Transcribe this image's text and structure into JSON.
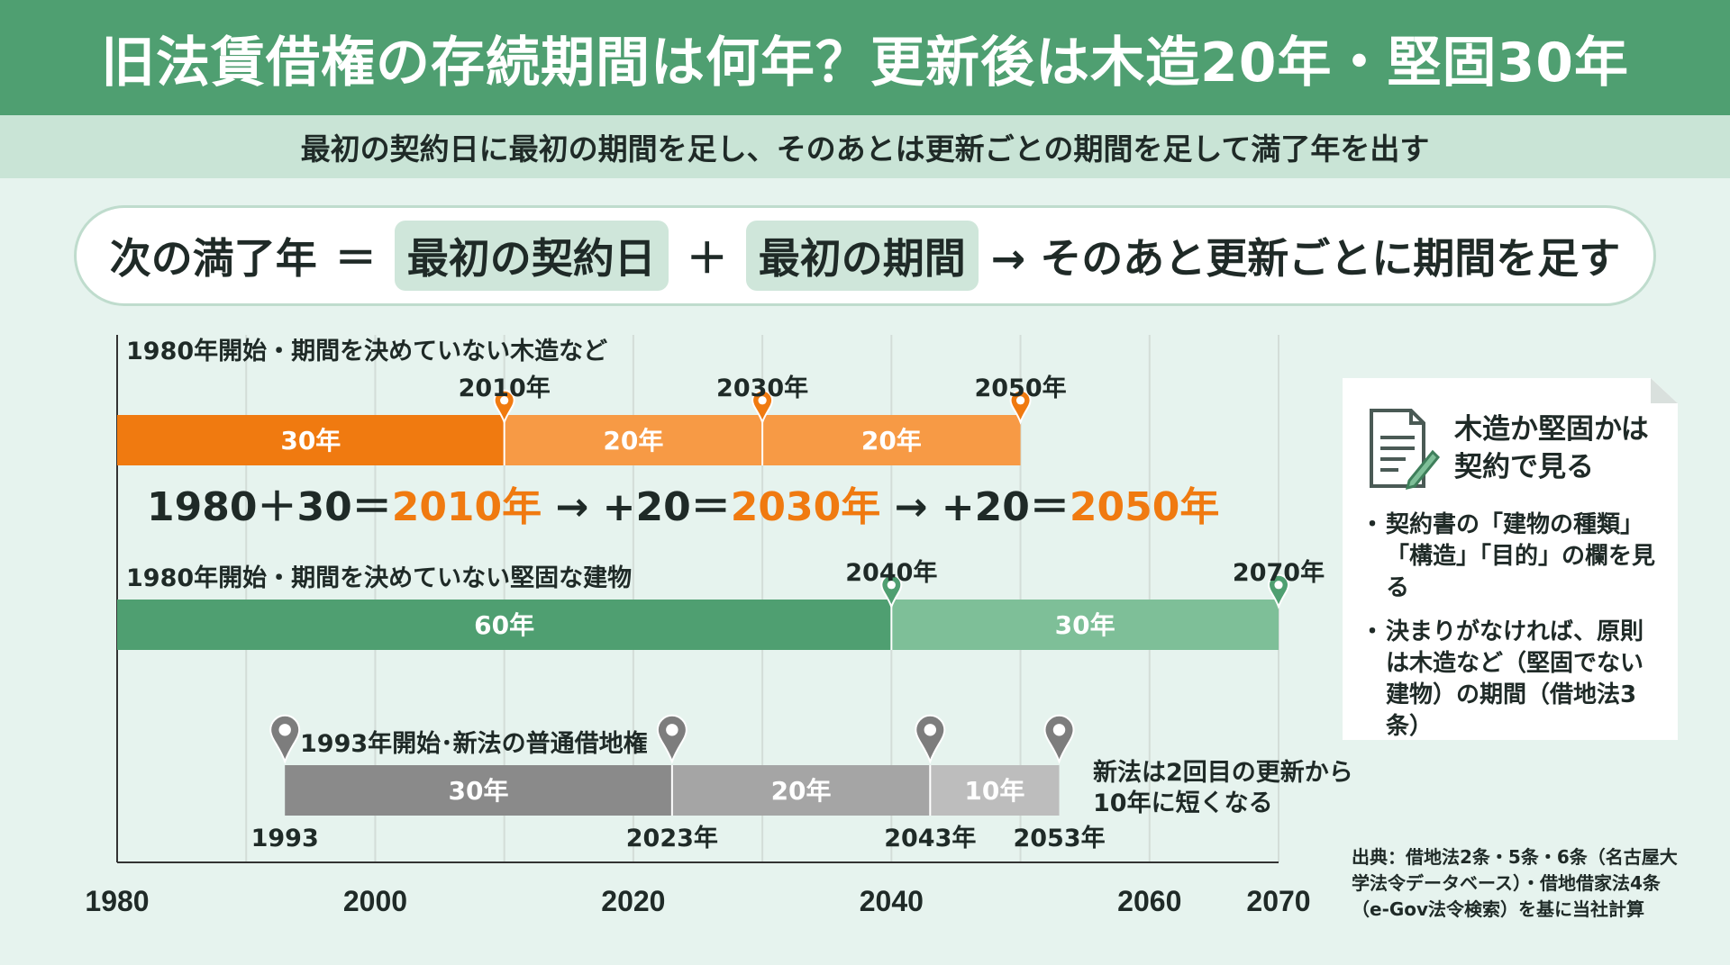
{
  "title": "旧法賃借権の存続期間は何年？更新後は木造20年・堅固30年",
  "subtitle": "最初の契約日に最初の期間を足し、そのあとは更新ごとの期間を足して満了年を出す",
  "formula": {
    "lhs": "次の満了年",
    "eq": "＝",
    "term1": "最初の契約日",
    "plus": "＋",
    "term2": "最初の期間",
    "rest": "→ そのあと更新ごとに期間を足す"
  },
  "axis": {
    "ticks": [
      "1980",
      "2000",
      "2020",
      "2040",
      "2060",
      "2070"
    ]
  },
  "rows": [
    {
      "label": "1980年開始・期間を決めていない木造など",
      "milestones": [
        "2010年",
        "2030年",
        "2050年"
      ],
      "segments": [
        "30年",
        "20年",
        "20年"
      ]
    },
    {
      "label": "1980年開始・期間を決めていない堅固な建物",
      "milestones": [
        "2040年",
        "2070年"
      ],
      "segments": [
        "60年",
        "30年"
      ]
    },
    {
      "label": "1993年開始･新法の普通借地権",
      "milestones": [
        "1993",
        "2023年",
        "2043年",
        "2053年"
      ],
      "segments": [
        "30年",
        "20年",
        "10年"
      ]
    }
  ],
  "calculation": {
    "p1": "1980＋30＝",
    "h1": "2010年",
    "p2": " → +20＝",
    "h2": "2030年",
    "p3": " → +20＝",
    "h3": "2050年"
  },
  "new_law_note": [
    "新法は2回目の更新から",
    "10年に短くなる"
  ],
  "side_card": {
    "title": "木造か堅固かは契約で見る",
    "bullets": [
      "契約書の「建物の種類」「構造」「目的」の欄を見る",
      "決まりがなければ、原則は木造など（堅固でない建物）の期間（借地法3条）"
    ]
  },
  "source": "出典：借地法2条・5条・6条（名古屋大学法令データベース）・借地借家法4条（e-Gov法令検索）を基に当社計算",
  "colors": {
    "header_green": "#4f9f71",
    "orange_dark": "#f07a10",
    "orange_light": "#f79a45",
    "green_dark": "#4f9f71",
    "green_light": "#7ebf98",
    "gray_dark": "#8a8a8a",
    "gray_mid": "#a5a5a5",
    "gray_light": "#bdbdbd"
  },
  "chart_data": {
    "type": "timeline",
    "xlim": [
      1980,
      2070
    ],
    "series": [
      {
        "name": "1980年開始・期間を決めていない木造など",
        "start": 1980,
        "milestones": [
          2010,
          2030,
          2050
        ],
        "durations": [
          30,
          20,
          20
        ]
      },
      {
        "name": "1980年開始・期間を決めていない堅固な建物",
        "start": 1980,
        "milestones": [
          2040,
          2070
        ],
        "durations": [
          60,
          30
        ]
      },
      {
        "name": "1993年開始･新法の普通借地権",
        "start": 1993,
        "milestones": [
          2023,
          2043,
          2053
        ],
        "durations": [
          30,
          20,
          10
        ]
      }
    ]
  }
}
